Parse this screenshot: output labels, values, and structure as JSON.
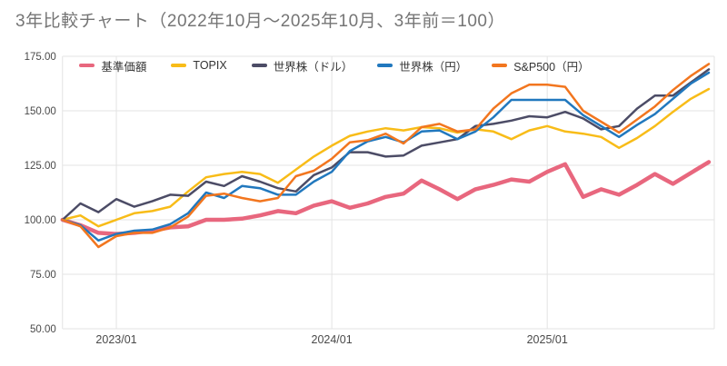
{
  "title": "3年比較チャート（2022年10月～2025年10月、3年前＝100）",
  "chart_data": {
    "type": "line",
    "title": "3年比較チャート（2022年10月～2025年10月、3年前＝100）",
    "xlabel": "",
    "ylabel": "",
    "ylim": [
      50,
      175
    ],
    "grid": true,
    "legend_position": "top",
    "yticks": [
      {
        "value": 175,
        "label": "175.00"
      },
      {
        "value": 150,
        "label": "150.00"
      },
      {
        "value": 125,
        "label": "125.00"
      },
      {
        "value": 100,
        "label": "100.00"
      },
      {
        "value": 75,
        "label": "75.00"
      },
      {
        "value": 50,
        "label": "50.00"
      }
    ],
    "xticks": [
      {
        "index": 3,
        "label": "2023/01"
      },
      {
        "index": 15,
        "label": "2024/01"
      },
      {
        "index": 27,
        "label": "2025/01"
      }
    ],
    "categories": [
      "2022/10",
      "2022/11",
      "2022/12",
      "2023/01",
      "2023/02",
      "2023/03",
      "2023/04",
      "2023/05",
      "2023/06",
      "2023/07",
      "2023/08",
      "2023/09",
      "2023/10",
      "2023/11",
      "2023/12",
      "2024/01",
      "2024/02",
      "2024/03",
      "2024/04",
      "2024/05",
      "2024/06",
      "2024/07",
      "2024/08",
      "2024/09",
      "2024/10",
      "2024/11",
      "2024/12",
      "2025/01",
      "2025/02",
      "2025/03",
      "2025/04",
      "2025/05",
      "2025/06",
      "2025/07",
      "2025/08",
      "2025/09",
      "2025/10"
    ],
    "series": [
      {
        "id": "fund",
        "name": "基準価額",
        "color": "#E8677E",
        "width": 4.5,
        "values": [
          100,
          97.5,
          94,
          93.5,
          94,
          95,
          96.5,
          97,
          100,
          100,
          100.5,
          102,
          104,
          103,
          106.5,
          108.5,
          105.5,
          107.5,
          110.5,
          112,
          118,
          114,
          109.5,
          114,
          116,
          118.5,
          117.5,
          122,
          125.5,
          110.5,
          114,
          111.5,
          116,
          121,
          116.5,
          121.5,
          126.5
        ]
      },
      {
        "id": "topix",
        "name": "TOPIX",
        "color": "#F8BC18",
        "width": 2.5,
        "values": [
          100,
          102,
          97,
          100,
          103,
          104,
          106,
          113,
          119.5,
          121,
          122,
          121,
          117,
          123,
          129,
          134,
          138.5,
          140.5,
          142,
          141,
          142.5,
          142,
          140,
          141.5,
          140.5,
          137,
          141,
          143,
          140.5,
          139.5,
          138,
          133,
          137.5,
          143,
          149.5,
          155.5,
          160
        ]
      },
      {
        "id": "world-usd",
        "name": "世界株（ドル）",
        "color": "#4C4C66",
        "width": 2.5,
        "values": [
          100,
          107.5,
          103.5,
          109.5,
          106,
          108.5,
          111.5,
          111,
          117.5,
          115.5,
          120,
          117.5,
          114.5,
          113,
          120.5,
          124,
          131,
          131,
          129,
          129.5,
          134,
          135.5,
          137,
          143,
          144,
          145.5,
          147.5,
          147,
          149.5,
          146.5,
          141.5,
          143,
          151,
          157,
          157,
          163,
          169
        ]
      },
      {
        "id": "world-jpy",
        "name": "世界株（円）",
        "color": "#2178BE",
        "width": 2.5,
        "values": [
          100,
          97.5,
          90.5,
          93.5,
          95,
          95.5,
          98,
          103,
          112.5,
          110,
          115.5,
          114.5,
          111.5,
          111.5,
          117.5,
          122,
          131.5,
          136,
          138,
          135.5,
          140.5,
          141,
          137,
          140.5,
          147,
          155,
          155,
          155,
          155,
          148,
          143,
          138,
          143.5,
          148.5,
          155.5,
          162.5,
          167.5
        ]
      },
      {
        "id": "sp500-jpy",
        "name": "S&P500（円）",
        "color": "#F2761F",
        "width": 2.5,
        "values": [
          100,
          97,
          87.5,
          92.5,
          94,
          94,
          96.5,
          101.5,
          111,
          112,
          110,
          108.5,
          110,
          120,
          122.5,
          128,
          135.5,
          136.5,
          139.5,
          135,
          142.5,
          144,
          140.5,
          141.5,
          151,
          158,
          162,
          162,
          161,
          150,
          145,
          140,
          146,
          152,
          159.5,
          166,
          171.5
        ]
      }
    ],
    "colors": {
      "grid": "#E3E3E3",
      "tick_label": "#4A4A4A",
      "title": "#757575",
      "background": "#FFFFFF"
    }
  }
}
